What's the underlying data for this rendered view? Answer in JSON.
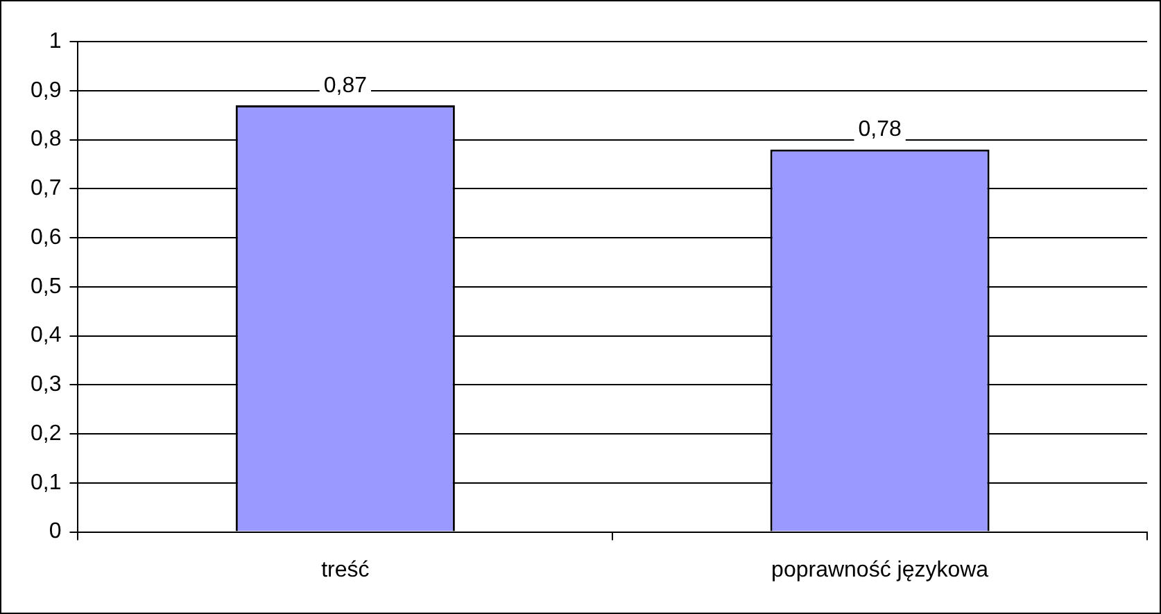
{
  "chart_data": {
    "type": "bar",
    "categories": [
      "treść",
      "poprawność językowa"
    ],
    "values": [
      0.87,
      0.78
    ],
    "color": "#9999ff",
    "value_labels": [
      "0,87",
      "0,78"
    ],
    "ylim": [
      0,
      1
    ],
    "yticks": [
      {
        "value": 0,
        "label": "0"
      },
      {
        "value": 0.1,
        "label": "0,1"
      },
      {
        "value": 0.2,
        "label": "0,2"
      },
      {
        "value": 0.3,
        "label": "0,3"
      },
      {
        "value": 0.4,
        "label": "0,4"
      },
      {
        "value": 0.5,
        "label": "0,5"
      },
      {
        "value": 0.6,
        "label": "0,6"
      },
      {
        "value": 0.7,
        "label": "0,7"
      },
      {
        "value": 0.8,
        "label": "0,8"
      },
      {
        "value": 0.9,
        "label": "0,9"
      },
      {
        "value": 1,
        "label": "1"
      }
    ],
    "grid": "y",
    "legend": false
  }
}
